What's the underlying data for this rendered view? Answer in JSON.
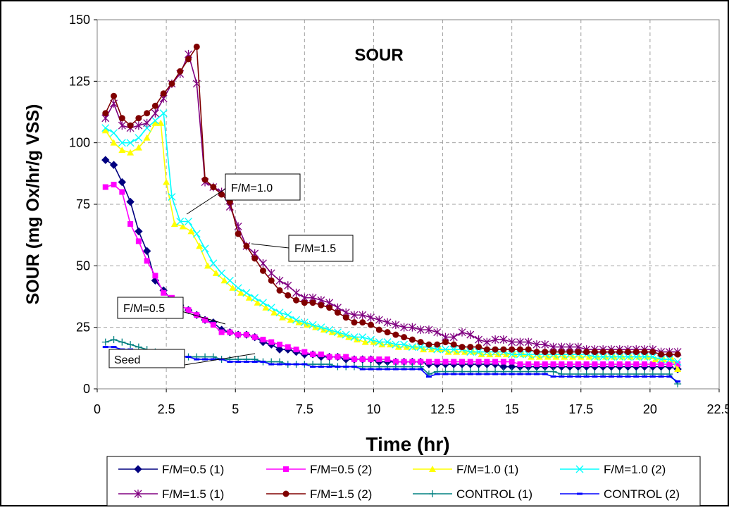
{
  "chart_data": {
    "type": "line",
    "title": "SOUR",
    "xlabel": "Time (hr)",
    "ylabel": "SOUR (mg Ox/hr/g VSS)",
    "xlim": [
      0,
      22.5
    ],
    "ylim": [
      0,
      150
    ],
    "xticks": [
      "0",
      "2.5",
      "5",
      "7.5",
      "10",
      "12.5",
      "15",
      "17.5",
      "20",
      "22.5"
    ],
    "yticks": [
      "0",
      "25",
      "50",
      "75",
      "100",
      "125",
      "150"
    ],
    "grid": true,
    "legend_position": "bottom",
    "annotations": [
      "F/M=1.0",
      "F/M=1.5",
      "F/M=0.5",
      "Seed"
    ],
    "series": [
      {
        "name": "F/M=0.5 (1)",
        "color": "#000080",
        "marker": "diamond",
        "x": [
          0.3,
          0.6,
          0.9,
          1.2,
          1.5,
          1.8,
          2.1,
          2.4,
          2.7,
          3.0,
          3.3,
          3.6,
          3.9,
          4.2,
          4.5,
          4.8,
          5.1,
          5.4,
          5.7,
          6.0,
          6.3,
          6.6,
          6.9,
          7.2,
          7.5,
          7.8,
          8.1,
          8.4,
          8.7,
          9.0,
          9.3,
          9.6,
          9.9,
          10.2,
          10.5,
          10.8,
          11.1,
          11.4,
          11.7,
          12.0,
          12.3,
          12.6,
          12.9,
          13.2,
          13.5,
          13.8,
          14.1,
          14.4,
          14.7,
          15.0,
          15.3,
          15.6,
          15.9,
          16.2,
          16.5,
          16.8,
          17.1,
          17.4,
          17.7,
          18.0,
          18.3,
          18.6,
          18.9,
          19.2,
          19.5,
          19.8,
          20.1,
          20.4,
          20.7,
          21.0
        ],
        "y": [
          93,
          91,
          84,
          76,
          64,
          56,
          44,
          40,
          36,
          34,
          32,
          30,
          28,
          27,
          24,
          23,
          22,
          22,
          21,
          19,
          18,
          16,
          16,
          15,
          14,
          14,
          13,
          13,
          13,
          12,
          12,
          12,
          12,
          11,
          11,
          11,
          11,
          11,
          11,
          10,
          10,
          10,
          10,
          10,
          10,
          10,
          10,
          10,
          9,
          9,
          9,
          9,
          9,
          9,
          9,
          9,
          9,
          9,
          9,
          9,
          9,
          9,
          9,
          9,
          9,
          9,
          9,
          9,
          9,
          8
        ]
      },
      {
        "name": "F/M=0.5 (2)",
        "color": "#ff00ff",
        "marker": "square",
        "x": [
          0.3,
          0.6,
          0.9,
          1.2,
          1.5,
          1.8,
          2.1,
          2.4,
          2.7,
          3.0,
          3.3,
          3.6,
          3.9,
          4.2,
          4.5,
          4.8,
          5.1,
          5.4,
          5.7,
          6.0,
          6.3,
          6.6,
          6.9,
          7.2,
          7.5,
          7.8,
          8.1,
          8.4,
          8.7,
          9.0,
          9.3,
          9.6,
          9.9,
          10.2,
          10.5,
          10.8,
          11.1,
          11.4,
          11.7,
          12.0,
          12.3,
          12.6,
          12.9,
          13.2,
          13.5,
          13.8,
          14.1,
          14.4,
          14.7,
          15.0,
          15.3,
          15.6,
          15.9,
          16.2,
          16.5,
          16.8,
          17.1,
          17.4,
          17.7,
          18.0,
          18.3,
          18.6,
          18.9,
          19.2,
          19.5,
          19.8,
          20.1,
          20.4,
          20.7,
          21.0
        ],
        "y": [
          82,
          83,
          80,
          67,
          60,
          52,
          46,
          39,
          37,
          34,
          32,
          30,
          28,
          26,
          23,
          23,
          22,
          22,
          21,
          20,
          19,
          18,
          17,
          16,
          15,
          14,
          14,
          13,
          13,
          13,
          12,
          12,
          12,
          12,
          12,
          11,
          11,
          11,
          11,
          11,
          11,
          11,
          11,
          11,
          11,
          11,
          11,
          11,
          11,
          11,
          10,
          10,
          10,
          10,
          10,
          10,
          10,
          10,
          10,
          10,
          10,
          10,
          10,
          10,
          10,
          10,
          10,
          10,
          10,
          10
        ]
      },
      {
        "name": "F/M=1.0 (1)",
        "color": "#ffff00",
        "marker": "triangle",
        "x": [
          0.3,
          0.6,
          0.9,
          1.2,
          1.5,
          1.8,
          2.1,
          2.3,
          2.5,
          2.8,
          3.1,
          3.4,
          3.7,
          4.0,
          4.3,
          4.6,
          4.9,
          5.2,
          5.5,
          5.8,
          6.1,
          6.4,
          6.7,
          7.0,
          7.3,
          7.6,
          7.9,
          8.2,
          8.5,
          8.8,
          9.1,
          9.4,
          9.7,
          10.0,
          10.3,
          10.6,
          10.9,
          11.2,
          11.5,
          11.8,
          12.1,
          12.4,
          12.7,
          13.0,
          13.3,
          13.6,
          13.9,
          14.2,
          14.5,
          14.8,
          15.1,
          15.4,
          15.7,
          16.0,
          16.3,
          16.6,
          16.9,
          17.2,
          17.5,
          17.8,
          18.1,
          18.4,
          18.7,
          19.0,
          19.3,
          19.6,
          19.9,
          20.2,
          20.5,
          20.8,
          21.0
        ],
        "y": [
          105,
          100,
          97,
          96,
          98,
          102,
          108,
          108,
          84,
          67,
          66,
          64,
          58,
          50,
          47,
          44,
          41,
          39,
          37,
          35,
          33,
          31,
          29,
          28,
          27,
          26,
          25,
          24,
          23,
          22,
          21,
          20,
          19,
          19,
          18,
          18,
          17,
          17,
          17,
          16,
          16,
          16,
          15,
          15,
          15,
          15,
          14,
          14,
          14,
          14,
          14,
          14,
          13,
          13,
          13,
          13,
          13,
          13,
          13,
          13,
          13,
          13,
          13,
          13,
          13,
          13,
          13,
          12,
          12,
          12,
          8
        ]
      },
      {
        "name": "F/M=1.0 (2)",
        "color": "#00ffff",
        "marker": "x",
        "x": [
          0.3,
          0.6,
          0.9,
          1.2,
          1.5,
          1.8,
          2.1,
          2.4,
          2.7,
          3.0,
          3.3,
          3.6,
          3.9,
          4.2,
          4.5,
          4.8,
          5.1,
          5.4,
          5.7,
          6.0,
          6.3,
          6.6,
          6.9,
          7.2,
          7.5,
          7.8,
          8.1,
          8.4,
          8.7,
          9.0,
          9.3,
          9.6,
          9.9,
          10.2,
          10.5,
          10.8,
          11.1,
          11.4,
          11.7,
          12.0,
          12.3,
          12.6,
          12.9,
          13.2,
          13.5,
          13.8,
          14.1,
          14.4,
          14.7,
          15.0,
          15.3,
          15.6,
          15.9,
          16.2,
          16.5,
          16.8,
          17.1,
          17.4,
          17.7,
          18.0,
          18.3,
          18.6,
          18.9,
          19.2,
          19.5,
          19.8,
          20.1,
          20.4,
          20.7,
          21.0
        ],
        "y": [
          106,
          104,
          100,
          100,
          102,
          106,
          109,
          112,
          78,
          68,
          68,
          63,
          57,
          51,
          47,
          44,
          41,
          39,
          37,
          35,
          33,
          31,
          30,
          28,
          27,
          26,
          25,
          24,
          23,
          22,
          21,
          21,
          20,
          19,
          19,
          18,
          18,
          17,
          17,
          17,
          16,
          16,
          16,
          16,
          15,
          15,
          15,
          15,
          15,
          14,
          14,
          14,
          14,
          14,
          14,
          14,
          14,
          14,
          14,
          13,
          13,
          13,
          13,
          13,
          13,
          13,
          13,
          12,
          12,
          11
        ]
      },
      {
        "name": "F/M=1.5 (1)",
        "color": "#800080",
        "marker": "asterisk",
        "x": [
          0.3,
          0.6,
          0.9,
          1.2,
          1.5,
          1.8,
          2.1,
          2.4,
          2.7,
          3.0,
          3.3,
          3.6,
          3.9,
          4.2,
          4.5,
          4.8,
          5.1,
          5.4,
          5.7,
          6.0,
          6.3,
          6.6,
          6.9,
          7.2,
          7.5,
          7.8,
          8.1,
          8.4,
          8.7,
          9.0,
          9.3,
          9.6,
          9.9,
          10.2,
          10.5,
          10.8,
          11.1,
          11.4,
          11.7,
          12.0,
          12.3,
          12.6,
          12.9,
          13.2,
          13.5,
          13.8,
          14.1,
          14.4,
          14.7,
          15.0,
          15.3,
          15.6,
          15.9,
          16.2,
          16.5,
          16.8,
          17.1,
          17.4,
          17.7,
          18.0,
          18.3,
          18.6,
          18.9,
          19.2,
          19.5,
          19.8,
          20.1,
          20.4,
          20.7,
          21.0
        ],
        "y": [
          110,
          116,
          107,
          106,
          107,
          108,
          112,
          118,
          124,
          128,
          136,
          124,
          84,
          82,
          80,
          74,
          66,
          58,
          55,
          51,
          47,
          44,
          42,
          39,
          37,
          37,
          36,
          35,
          33,
          31,
          30,
          30,
          29,
          28,
          27,
          26,
          25,
          25,
          24,
          24,
          23,
          21,
          21,
          23,
          22,
          20,
          19,
          20,
          20,
          19,
          19,
          19,
          18,
          18,
          17,
          17,
          17,
          17,
          16,
          16,
          16,
          16,
          16,
          16,
          16,
          16,
          16,
          15,
          15,
          15
        ]
      },
      {
        "name": "F/M=1.5 (2)",
        "color": "#800000",
        "marker": "circle",
        "x": [
          0.3,
          0.6,
          0.9,
          1.2,
          1.5,
          1.8,
          2.1,
          2.4,
          2.7,
          3.0,
          3.3,
          3.6,
          3.9,
          4.2,
          4.5,
          4.8,
          5.1,
          5.4,
          5.7,
          6.0,
          6.3,
          6.6,
          6.9,
          7.2,
          7.5,
          7.8,
          8.1,
          8.4,
          8.7,
          9.0,
          9.3,
          9.6,
          9.9,
          10.2,
          10.5,
          10.8,
          11.1,
          11.4,
          11.7,
          12.0,
          12.3,
          12.6,
          12.9,
          13.2,
          13.5,
          13.8,
          14.1,
          14.4,
          14.7,
          15.0,
          15.3,
          15.6,
          15.9,
          16.2,
          16.5,
          16.8,
          17.1,
          17.4,
          17.7,
          18.0,
          18.3,
          18.6,
          18.9,
          19.2,
          19.5,
          19.8,
          20.1,
          20.4,
          20.7,
          21.0
        ],
        "y": [
          112,
          119,
          110,
          107,
          110,
          112,
          115,
          120,
          124,
          129,
          134,
          139,
          85,
          82,
          79,
          76,
          63,
          58,
          53,
          48,
          44,
          40,
          38,
          36,
          35,
          35,
          34,
          33,
          31,
          29,
          27,
          27,
          26,
          24,
          23,
          22,
          21,
          20,
          19,
          18,
          18,
          19,
          18,
          17,
          17,
          17,
          16,
          16,
          16,
          16,
          16,
          16,
          15,
          15,
          15,
          15,
          15,
          15,
          15,
          15,
          15,
          15,
          15,
          15,
          15,
          15,
          15,
          14,
          14,
          14
        ]
      },
      {
        "name": "CONTROL (1)",
        "color": "#008080",
        "marker": "plus",
        "x": [
          0.3,
          0.6,
          0.9,
          1.2,
          1.5,
          1.8,
          2.1,
          2.4,
          2.7,
          3.0,
          3.3,
          3.6,
          3.9,
          4.2,
          4.5,
          4.8,
          5.1,
          5.4,
          5.7,
          6.0,
          6.3,
          6.6,
          6.9,
          7.2,
          7.5,
          7.8,
          8.1,
          8.4,
          8.7,
          9.0,
          9.3,
          9.6,
          9.9,
          10.2,
          10.5,
          10.8,
          11.1,
          11.4,
          11.7,
          12.0,
          12.3,
          12.6,
          12.9,
          13.2,
          13.5,
          13.8,
          14.1,
          14.4,
          14.7,
          15.0,
          15.3,
          15.6,
          15.9,
          16.2,
          16.5,
          16.8,
          17.1,
          17.4,
          17.7,
          18.0,
          18.3,
          18.6,
          18.9,
          19.2,
          19.5,
          19.8,
          20.1,
          20.4,
          20.7,
          21.0
        ],
        "y": [
          19,
          20,
          19,
          18,
          17,
          16,
          15,
          14,
          14,
          13,
          13,
          13,
          13,
          13,
          12,
          12,
          12,
          12,
          12,
          11,
          11,
          11,
          10,
          10,
          10,
          10,
          10,
          10,
          9,
          9,
          9,
          9,
          9,
          9,
          9,
          9,
          9,
          9,
          9,
          6,
          7,
          7,
          7,
          7,
          7,
          7,
          7,
          7,
          7,
          7,
          7,
          7,
          7,
          7,
          7,
          6,
          6,
          6,
          6,
          6,
          6,
          6,
          6,
          6,
          6,
          6,
          6,
          6,
          6,
          2
        ]
      },
      {
        "name": "CONTROL (2)",
        "color": "#0000ff",
        "marker": "dash",
        "x": [
          0.3,
          0.6,
          0.9,
          1.2,
          1.5,
          1.8,
          2.1,
          2.4,
          2.7,
          3.0,
          3.3,
          3.6,
          3.9,
          4.2,
          4.5,
          4.8,
          5.1,
          5.4,
          5.7,
          6.0,
          6.3,
          6.6,
          6.9,
          7.2,
          7.5,
          7.8,
          8.1,
          8.4,
          8.7,
          9.0,
          9.3,
          9.6,
          9.9,
          10.2,
          10.5,
          10.8,
          11.1,
          11.4,
          11.7,
          12.0,
          12.3,
          12.6,
          12.9,
          13.2,
          13.5,
          13.8,
          14.1,
          14.4,
          14.7,
          15.0,
          15.3,
          15.6,
          15.9,
          16.2,
          16.5,
          16.8,
          17.1,
          17.4,
          17.7,
          18.0,
          18.3,
          18.6,
          18.9,
          19.2,
          19.5,
          19.8,
          20.1,
          20.4,
          20.7,
          21.0
        ],
        "y": [
          17,
          17,
          16,
          16,
          15,
          14,
          14,
          13,
          13,
          13,
          13,
          12,
          12,
          12,
          12,
          11,
          11,
          11,
          11,
          11,
          10,
          10,
          10,
          10,
          10,
          9,
          9,
          9,
          9,
          9,
          9,
          8,
          8,
          8,
          8,
          8,
          8,
          8,
          8,
          5,
          6,
          6,
          6,
          6,
          6,
          6,
          6,
          6,
          6,
          6,
          6,
          6,
          6,
          6,
          5,
          5,
          5,
          5,
          5,
          5,
          5,
          5,
          5,
          5,
          5,
          5,
          5,
          5,
          5,
          3
        ]
      }
    ]
  }
}
